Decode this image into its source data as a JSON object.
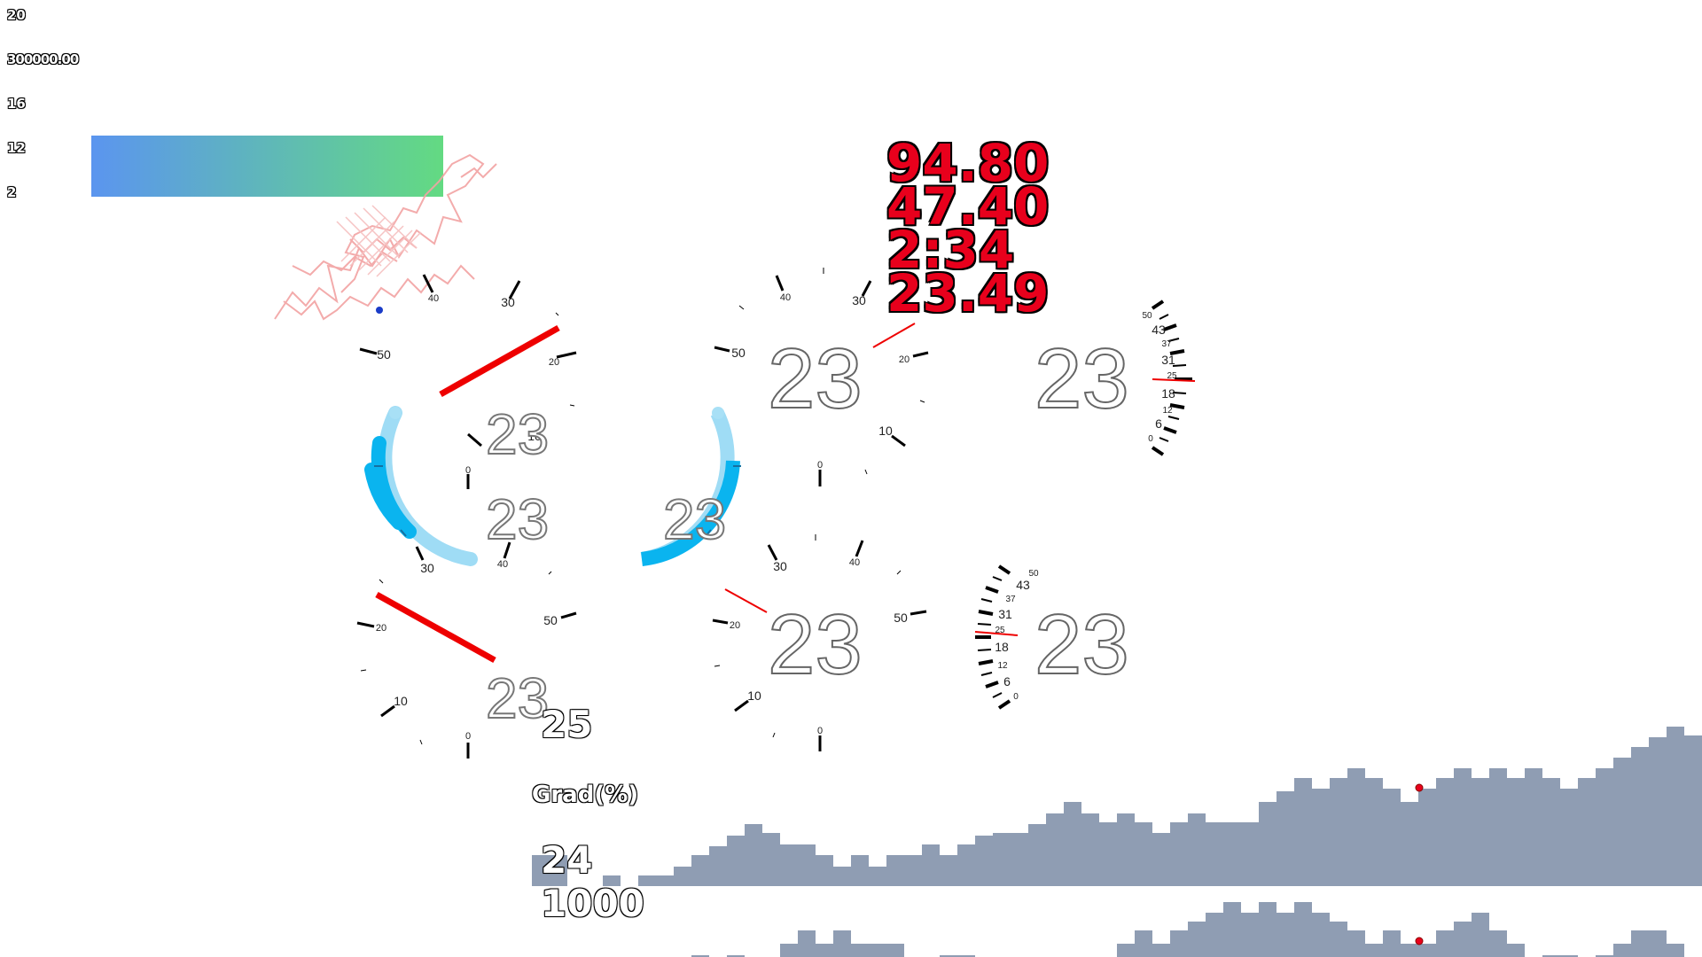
{
  "left_stats": [
    "20",
    "300000.00",
    "16",
    "12",
    "2"
  ],
  "gradient_bar": {
    "color_start": "#5b95ef",
    "color_end": "#63da82"
  },
  "red_readouts": [
    "94.80",
    "47.40",
    "2:34",
    "23.49"
  ],
  "speed_values": {
    "gauge_a": "23",
    "gauge_a2": "23",
    "gauge_b": "23",
    "gauge_c": "23",
    "gauge_d": "23",
    "gauge_e": "23",
    "gauge_f": "23",
    "gauge_g": "23"
  },
  "dial_ticks": [
    "0",
    "10",
    "20",
    "30",
    "40",
    "50"
  ],
  "strip_ticks": [
    "0",
    "6",
    "12",
    "18",
    "25",
    "31",
    "37",
    "43",
    "50"
  ],
  "grade": {
    "label": "Grad(%)",
    "value": "25"
  },
  "elevation": {
    "value": "24",
    "distance": "1000"
  },
  "colors": {
    "accent_red": "#e8001c",
    "arc_blue": "#0ab4ef",
    "profile": "#8f9db3",
    "marker": "#e8001c"
  }
}
